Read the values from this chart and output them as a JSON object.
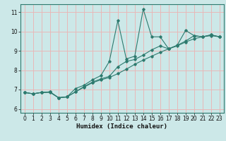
{
  "xlabel": "Humidex (Indice chaleur)",
  "bg_color": "#cce8e8",
  "grid_color": "#e8b8b8",
  "line_color": "#2d7a6e",
  "xlim": [
    -0.5,
    23.5
  ],
  "ylim": [
    5.8,
    11.4
  ],
  "yticks": [
    6,
    7,
    8,
    9,
    10,
    11
  ],
  "xticks": [
    0,
    1,
    2,
    3,
    4,
    5,
    6,
    7,
    8,
    9,
    10,
    11,
    12,
    13,
    14,
    15,
    16,
    17,
    18,
    19,
    20,
    21,
    22,
    23
  ],
  "x": [
    0,
    1,
    2,
    3,
    4,
    5,
    6,
    7,
    8,
    9,
    10,
    11,
    12,
    13,
    14,
    15,
    16,
    17,
    18,
    19,
    20,
    21,
    22,
    23
  ],
  "y_zigzag": [
    6.85,
    6.78,
    6.85,
    6.88,
    6.58,
    6.62,
    7.05,
    7.22,
    7.5,
    7.72,
    8.45,
    10.55,
    8.58,
    8.72,
    11.15,
    9.72,
    9.72,
    9.1,
    9.28,
    10.05,
    9.78,
    9.72,
    9.82,
    9.72
  ],
  "y_upper": [
    6.85,
    6.78,
    6.85,
    6.88,
    6.58,
    6.62,
    6.88,
    7.15,
    7.38,
    7.55,
    7.68,
    8.18,
    8.45,
    8.55,
    8.78,
    9.05,
    9.25,
    9.1,
    9.28,
    9.5,
    9.78,
    9.72,
    9.82,
    9.72
  ],
  "y_lower": [
    6.85,
    6.78,
    6.85,
    6.85,
    6.58,
    6.62,
    6.88,
    7.12,
    7.35,
    7.5,
    7.62,
    7.82,
    8.05,
    8.3,
    8.52,
    8.72,
    8.92,
    9.1,
    9.25,
    9.45,
    9.62,
    9.72,
    9.78,
    9.72
  ]
}
